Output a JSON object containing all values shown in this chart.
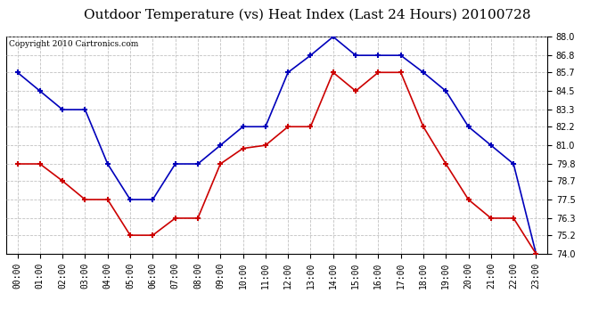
{
  "title": "Outdoor Temperature (vs) Heat Index (Last 24 Hours) 20100728",
  "copyright": "Copyright 2010 Cartronics.com",
  "x_labels": [
    "00:00",
    "01:00",
    "02:00",
    "03:00",
    "04:00",
    "05:00",
    "06:00",
    "07:00",
    "08:00",
    "09:00",
    "10:00",
    "11:00",
    "12:00",
    "13:00",
    "14:00",
    "15:00",
    "16:00",
    "17:00",
    "18:00",
    "19:00",
    "20:00",
    "21:00",
    "22:00",
    "23:00"
  ],
  "blue_data": [
    85.7,
    84.5,
    83.3,
    83.3,
    79.8,
    77.5,
    77.5,
    79.8,
    79.8,
    81.0,
    82.2,
    82.2,
    85.7,
    86.8,
    88.0,
    86.8,
    86.8,
    86.8,
    85.7,
    84.5,
    82.2,
    81.0,
    79.8,
    74.0
  ],
  "red_data": [
    79.8,
    79.8,
    78.7,
    77.5,
    77.5,
    75.2,
    75.2,
    76.3,
    76.3,
    79.8,
    80.8,
    81.0,
    82.2,
    82.2,
    85.7,
    84.5,
    85.7,
    85.7,
    82.2,
    79.8,
    77.5,
    76.3,
    76.3,
    74.0
  ],
  "blue_color": "#0000bb",
  "red_color": "#cc0000",
  "ylim_min": 74.0,
  "ylim_max": 88.0,
  "yticks": [
    74.0,
    75.2,
    76.3,
    77.5,
    78.7,
    79.8,
    81.0,
    82.2,
    83.3,
    84.5,
    85.7,
    86.8,
    88.0
  ],
  "background_color": "#ffffff",
  "grid_color": "#bbbbbb",
  "title_fontsize": 11,
  "copyright_fontsize": 6.5,
  "tick_fontsize": 7
}
